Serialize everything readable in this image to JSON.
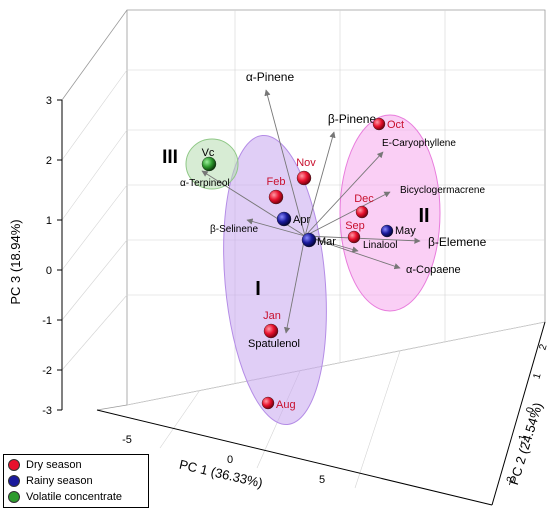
{
  "chart_data": {
    "type": "scatter",
    "axes": {
      "x": {
        "label": "PC 1 (36.33%)",
        "ticks": [
          "-5",
          "0",
          "5"
        ]
      },
      "y": {
        "label": "PC 2 (24.54%)",
        "ticks": [
          "-2",
          "-1",
          "0",
          "1",
          "2"
        ]
      },
      "z": {
        "label": "PC 3 (18.94%)",
        "ticks": [
          "-3",
          "-2",
          "-1",
          "0",
          "1",
          "2",
          "3"
        ]
      }
    },
    "samples": [
      {
        "label": "Oct",
        "group": "Dry season"
      },
      {
        "label": "Nov",
        "group": "Dry season"
      },
      {
        "label": "Feb",
        "group": "Dry season"
      },
      {
        "label": "Dec",
        "group": "Dry season"
      },
      {
        "label": "Sep",
        "group": "Dry season"
      },
      {
        "label": "Jan",
        "group": "Dry season"
      },
      {
        "label": "Aug",
        "group": "Dry season"
      },
      {
        "label": "Apr",
        "group": "Rainy season"
      },
      {
        "label": "Mar",
        "group": "Rainy season"
      },
      {
        "label": "May",
        "group": "Rainy season"
      },
      {
        "label": "Vc",
        "group": "Volatile concentrate"
      }
    ],
    "loadings": [
      "α-Pinene",
      "β-Pinene",
      "E-Caryophyllene",
      "Bicyclogermacrene",
      "β-Elemene",
      "α-Copaene",
      "Linalool",
      "α-Terpineol",
      "β-Selinene",
      "Spatulenol"
    ],
    "clusters": [
      "I",
      "II",
      "III"
    ],
    "legend": {
      "position": "bottom-left",
      "items": [
        {
          "name": "Dry season",
          "color": "#e8112d"
        },
        {
          "name": "Rainy season",
          "color": "#1a1a9c"
        },
        {
          "name": "Volatile concentrate",
          "color": "#2e9b2e"
        }
      ]
    },
    "grid": true
  }
}
